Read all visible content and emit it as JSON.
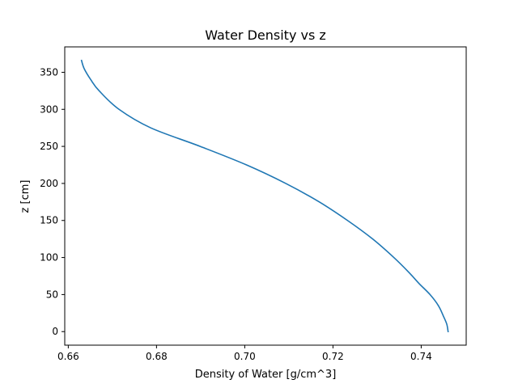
{
  "chart_data": {
    "type": "line",
    "title": "Water Density vs z",
    "xlabel": "Density of Water [g/cm^3]",
    "ylabel": "z [cm]",
    "xlim": [
      0.6592,
      0.7502
    ],
    "ylim": [
      -18.3,
      384.3
    ],
    "xticks": [
      0.66,
      0.68,
      0.7,
      0.72,
      0.74
    ],
    "xtick_labels": [
      "0.66",
      "0.68",
      "0.70",
      "0.72",
      "0.74"
    ],
    "yticks": [
      0,
      50,
      100,
      150,
      200,
      250,
      300,
      350
    ],
    "ytick_labels": [
      "0",
      "50",
      "100",
      "150",
      "200",
      "250",
      "300",
      "350"
    ],
    "grid": false,
    "series": [
      {
        "color": "#1f77b4",
        "points": [
          [
            0.7461,
            0
          ],
          [
            0.7458,
            10
          ],
          [
            0.7451,
            20
          ],
          [
            0.7439,
            35
          ],
          [
            0.742,
            50
          ],
          [
            0.7395,
            65
          ],
          [
            0.7372,
            80
          ],
          [
            0.7338,
            100
          ],
          [
            0.729,
            125
          ],
          [
            0.7233,
            150
          ],
          [
            0.7169,
            175
          ],
          [
            0.7093,
            200
          ],
          [
            0.7004,
            225
          ],
          [
            0.6899,
            250
          ],
          [
            0.6787,
            275
          ],
          [
            0.6715,
            300
          ],
          [
            0.667,
            325
          ],
          [
            0.6651,
            340
          ],
          [
            0.6636,
            355
          ],
          [
            0.663,
            366
          ]
        ]
      }
    ]
  }
}
